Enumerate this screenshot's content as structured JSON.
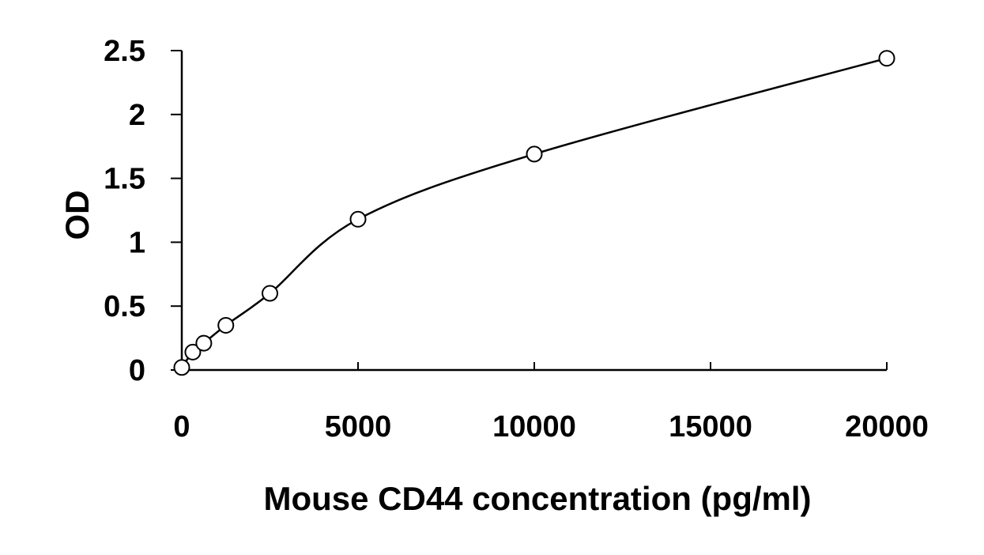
{
  "colors": {
    "axis": "#000000",
    "line": "#000000",
    "marker_fill": "#ffffff",
    "background": "#ffffff"
  },
  "chart_data": {
    "type": "scatter",
    "title": "",
    "xlabel": "Mouse CD44 concentration (pg/ml)",
    "ylabel": "OD",
    "xlim": [
      0,
      20000
    ],
    "ylim": [
      0,
      2.5
    ],
    "grid": false,
    "legend": "none",
    "x_ticks": [
      0,
      5000,
      10000,
      15000,
      20000
    ],
    "x_tick_labels": [
      "0",
      "5000",
      "10000",
      "15000",
      "20000"
    ],
    "y_ticks": [
      0,
      0.5,
      1,
      1.5,
      2,
      2.5
    ],
    "y_tick_labels": [
      "0",
      "0.5",
      "1",
      "1.5",
      "2",
      "2.5"
    ],
    "series": [
      {
        "x": [
          0,
          312.5,
          625,
          1250,
          2500,
          5000,
          10000,
          20000
        ],
        "y": [
          0.02,
          0.14,
          0.21,
          0.35,
          0.6,
          1.18,
          1.69,
          2.44
        ],
        "marker": "open-circle",
        "fit_line": true
      }
    ]
  }
}
